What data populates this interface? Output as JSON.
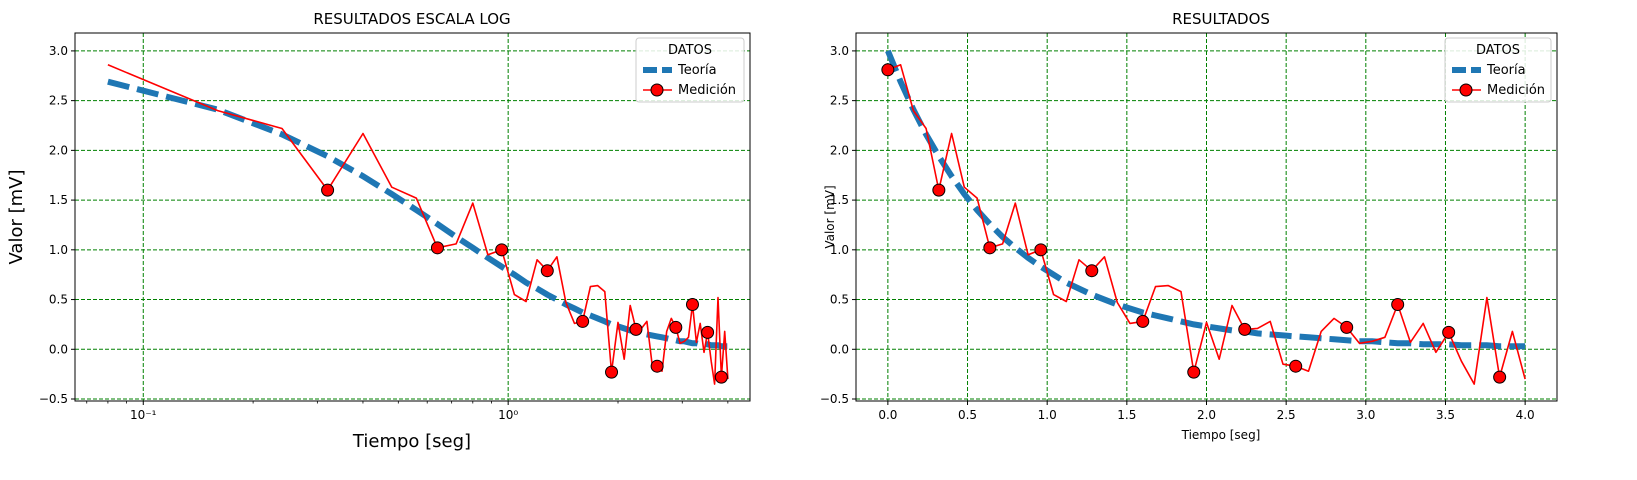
{
  "colors": {
    "theory": "#1f77b4",
    "measurement": "#ff0000",
    "marker_fill": "#ff0000",
    "marker_edge": "#000000",
    "grid": "#008000"
  },
  "chart_data": [
    {
      "type": "line",
      "title": "RESULTADOS ESCALA LOG",
      "xlabel": "Tiempo [seg]",
      "ylabel": "Valor [mV]",
      "xscale": "log",
      "xlim": [
        0.065,
        4.6
      ],
      "ylim": [
        -0.52,
        3.18
      ],
      "xticks": [
        0.1,
        1
      ],
      "xtick_labels": [
        "10⁻¹",
        "10⁰"
      ],
      "yticks": [
        -0.5,
        0.0,
        0.5,
        1.0,
        1.5,
        2.0,
        2.5,
        3.0
      ],
      "ytick_labels": [
        "−0.5",
        "0.0",
        "0.5",
        "1.0",
        "1.5",
        "2.0",
        "2.5",
        "3.0"
      ],
      "grid": true,
      "legend": {
        "title": "DATOS",
        "position": "top-right"
      },
      "series": [
        {
          "name": "Teoría",
          "style": "dashed-thick",
          "x": [
            0.0,
            0.08,
            0.16,
            0.24,
            0.32,
            0.4,
            0.48,
            0.56,
            0.64,
            0.72,
            0.8,
            0.88,
            0.96,
            1.04,
            1.12,
            1.2,
            1.28,
            1.36,
            1.44,
            1.52,
            1.6,
            1.68,
            1.76,
            1.84,
            1.92,
            2.0,
            2.08,
            2.16,
            2.24,
            2.32,
            2.4,
            2.48,
            2.56,
            2.64,
            2.72,
            2.8,
            2.88,
            2.96,
            3.04,
            3.12,
            3.2,
            3.28,
            3.36,
            3.44,
            3.52,
            3.6,
            3.68,
            3.76,
            3.84,
            3.92,
            4.0
          ],
          "y": [
            3.0,
            2.69,
            2.41,
            2.16,
            1.94,
            1.74,
            1.56,
            1.4,
            1.26,
            1.13,
            1.02,
            0.92,
            0.83,
            0.75,
            0.67,
            0.61,
            0.55,
            0.5,
            0.45,
            0.41,
            0.37,
            0.34,
            0.31,
            0.28,
            0.25,
            0.23,
            0.21,
            0.19,
            0.18,
            0.16,
            0.15,
            0.14,
            0.13,
            0.12,
            0.11,
            0.1,
            0.09,
            0.08,
            0.08,
            0.07,
            0.06,
            0.06,
            0.05,
            0.05,
            0.05,
            0.04,
            0.04,
            0.04,
            0.03,
            0.03,
            0.03
          ]
        },
        {
          "name": "Medición",
          "style": "solid",
          "x": [
            0.0,
            0.08,
            0.16,
            0.24,
            0.32,
            0.4,
            0.48,
            0.56,
            0.64,
            0.72,
            0.8,
            0.88,
            0.96,
            1.04,
            1.12,
            1.2,
            1.28,
            1.36,
            1.44,
            1.52,
            1.6,
            1.68,
            1.76,
            1.84,
            1.92,
            2.0,
            2.08,
            2.16,
            2.24,
            2.32,
            2.4,
            2.48,
            2.56,
            2.64,
            2.72,
            2.8,
            2.88,
            2.96,
            3.04,
            3.12,
            3.2,
            3.28,
            3.36,
            3.44,
            3.52,
            3.6,
            3.68,
            3.76,
            3.84,
            3.92,
            4.0
          ],
          "y": [
            2.81,
            2.86,
            2.4,
            2.22,
            1.6,
            2.17,
            1.63,
            1.52,
            1.02,
            1.06,
            1.47,
            0.95,
            1.0,
            0.55,
            0.48,
            0.9,
            0.79,
            0.93,
            0.47,
            0.26,
            0.28,
            0.63,
            0.64,
            0.58,
            -0.23,
            0.27,
            -0.1,
            0.44,
            0.2,
            0.21,
            0.28,
            -0.15,
            -0.17,
            -0.22,
            0.18,
            0.31,
            0.22,
            0.06,
            0.08,
            0.12,
            0.45,
            0.07,
            0.26,
            -0.03,
            0.17,
            -0.12,
            -0.35,
            0.52,
            -0.28,
            0.18,
            -0.3
          ]
        }
      ],
      "marker_x": [
        0.0,
        0.32,
        0.64,
        0.96,
        1.28,
        1.6,
        1.92,
        2.24,
        2.56,
        2.88,
        3.2,
        3.52,
        3.84
      ]
    },
    {
      "type": "line",
      "title": "RESULTADOS",
      "xlabel": "Tiempo [seg]",
      "ylabel": "Valor [mV]",
      "xscale": "linear",
      "xlim": [
        -0.2,
        4.2
      ],
      "ylim": [
        -0.52,
        3.18
      ],
      "xticks": [
        0.0,
        0.5,
        1.0,
        1.5,
        2.0,
        2.5,
        3.0,
        3.5,
        4.0
      ],
      "xtick_labels": [
        "0.0",
        "0.5",
        "1.0",
        "1.5",
        "2.0",
        "2.5",
        "3.0",
        "3.5",
        "4.0"
      ],
      "yticks": [
        -0.5,
        0.0,
        0.5,
        1.0,
        1.5,
        2.0,
        2.5,
        3.0
      ],
      "ytick_labels": [
        "−0.5",
        "0.0",
        "0.5",
        "1.0",
        "1.5",
        "2.0",
        "2.5",
        "3.0"
      ],
      "grid": true,
      "legend": {
        "title": "DATOS",
        "position": "top-right"
      },
      "series_ref": "same as first chart",
      "series": [
        {
          "name": "Teoría",
          "style": "dashed-thick"
        },
        {
          "name": "Medición",
          "style": "solid"
        }
      ]
    }
  ]
}
